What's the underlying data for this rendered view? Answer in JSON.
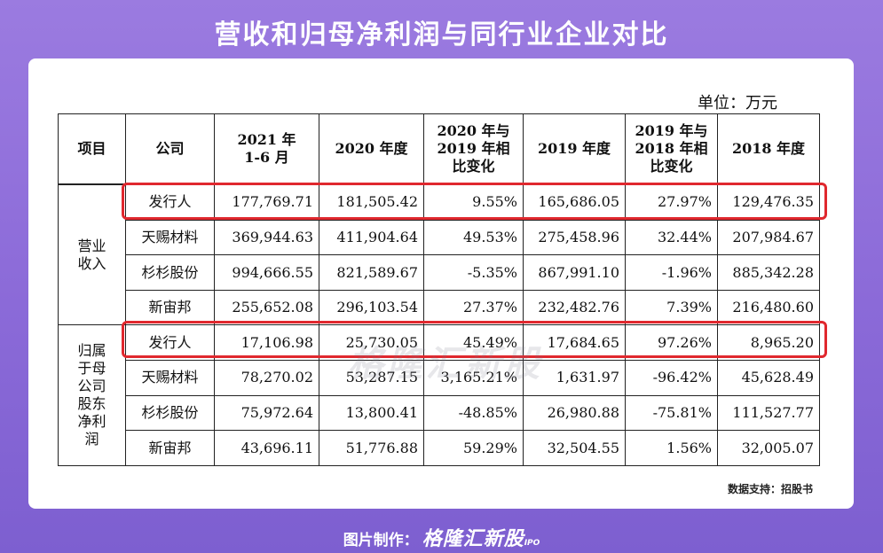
{
  "title": "营收和归母净利润与同行业企业对比",
  "unit": "单位：万元",
  "watermark": "格隆汇新股",
  "source": "数据支持：招股书",
  "footer": {
    "label": "图片制作：",
    "brand": "格隆汇新股",
    "ipo": "IPO"
  },
  "table": {
    "headers": [
      "项目",
      "公司",
      "2021 年\n1-6 月",
      "2020 年度",
      "2020 年与\n2019 年相\n比变化",
      "2019 年度",
      "2019 年与\n2018 年相\n比变化",
      "2018 年度"
    ],
    "groups": [
      {
        "label": "营业\n收入",
        "rows": [
          {
            "company": "发行人",
            "values": [
              "177,769.71",
              "181,505.42",
              "9.55%",
              "165,686.05",
              "27.97%",
              "129,476.35"
            ]
          },
          {
            "company": "天赐材料",
            "values": [
              "369,944.63",
              "411,904.64",
              "49.53%",
              "275,458.96",
              "32.44%",
              "207,984.67"
            ]
          },
          {
            "company": "杉杉股份",
            "values": [
              "994,666.55",
              "821,589.67",
              "-5.35%",
              "867,991.10",
              "-1.96%",
              "885,342.28"
            ]
          },
          {
            "company": "新宙邦",
            "values": [
              "255,652.08",
              "296,103.54",
              "27.37%",
              "232,482.76",
              "7.39%",
              "216,480.60"
            ]
          }
        ]
      },
      {
        "label": "归属\n于母\n公司\n股东\n净利\n润",
        "rows": [
          {
            "company": "发行人",
            "values": [
              "17,106.98",
              "25,730.05",
              "45.49%",
              "17,684.65",
              "97.26%",
              "8,965.20"
            ]
          },
          {
            "company": "天赐材料",
            "values": [
              "78,270.02",
              "53,287.15",
              "3,165.21%",
              "1,631.97",
              "-96.42%",
              "45,628.49"
            ]
          },
          {
            "company": "杉杉股份",
            "values": [
              "75,972.64",
              "13,800.41",
              "-48.85%",
              "26,980.88",
              "-75.81%",
              "111,527.77"
            ]
          },
          {
            "company": "新宙邦",
            "values": [
              "43,696.11",
              "51,776.88",
              "59.29%",
              "32,504.55",
              "1.56%",
              "32,005.07"
            ]
          }
        ]
      }
    ]
  }
}
